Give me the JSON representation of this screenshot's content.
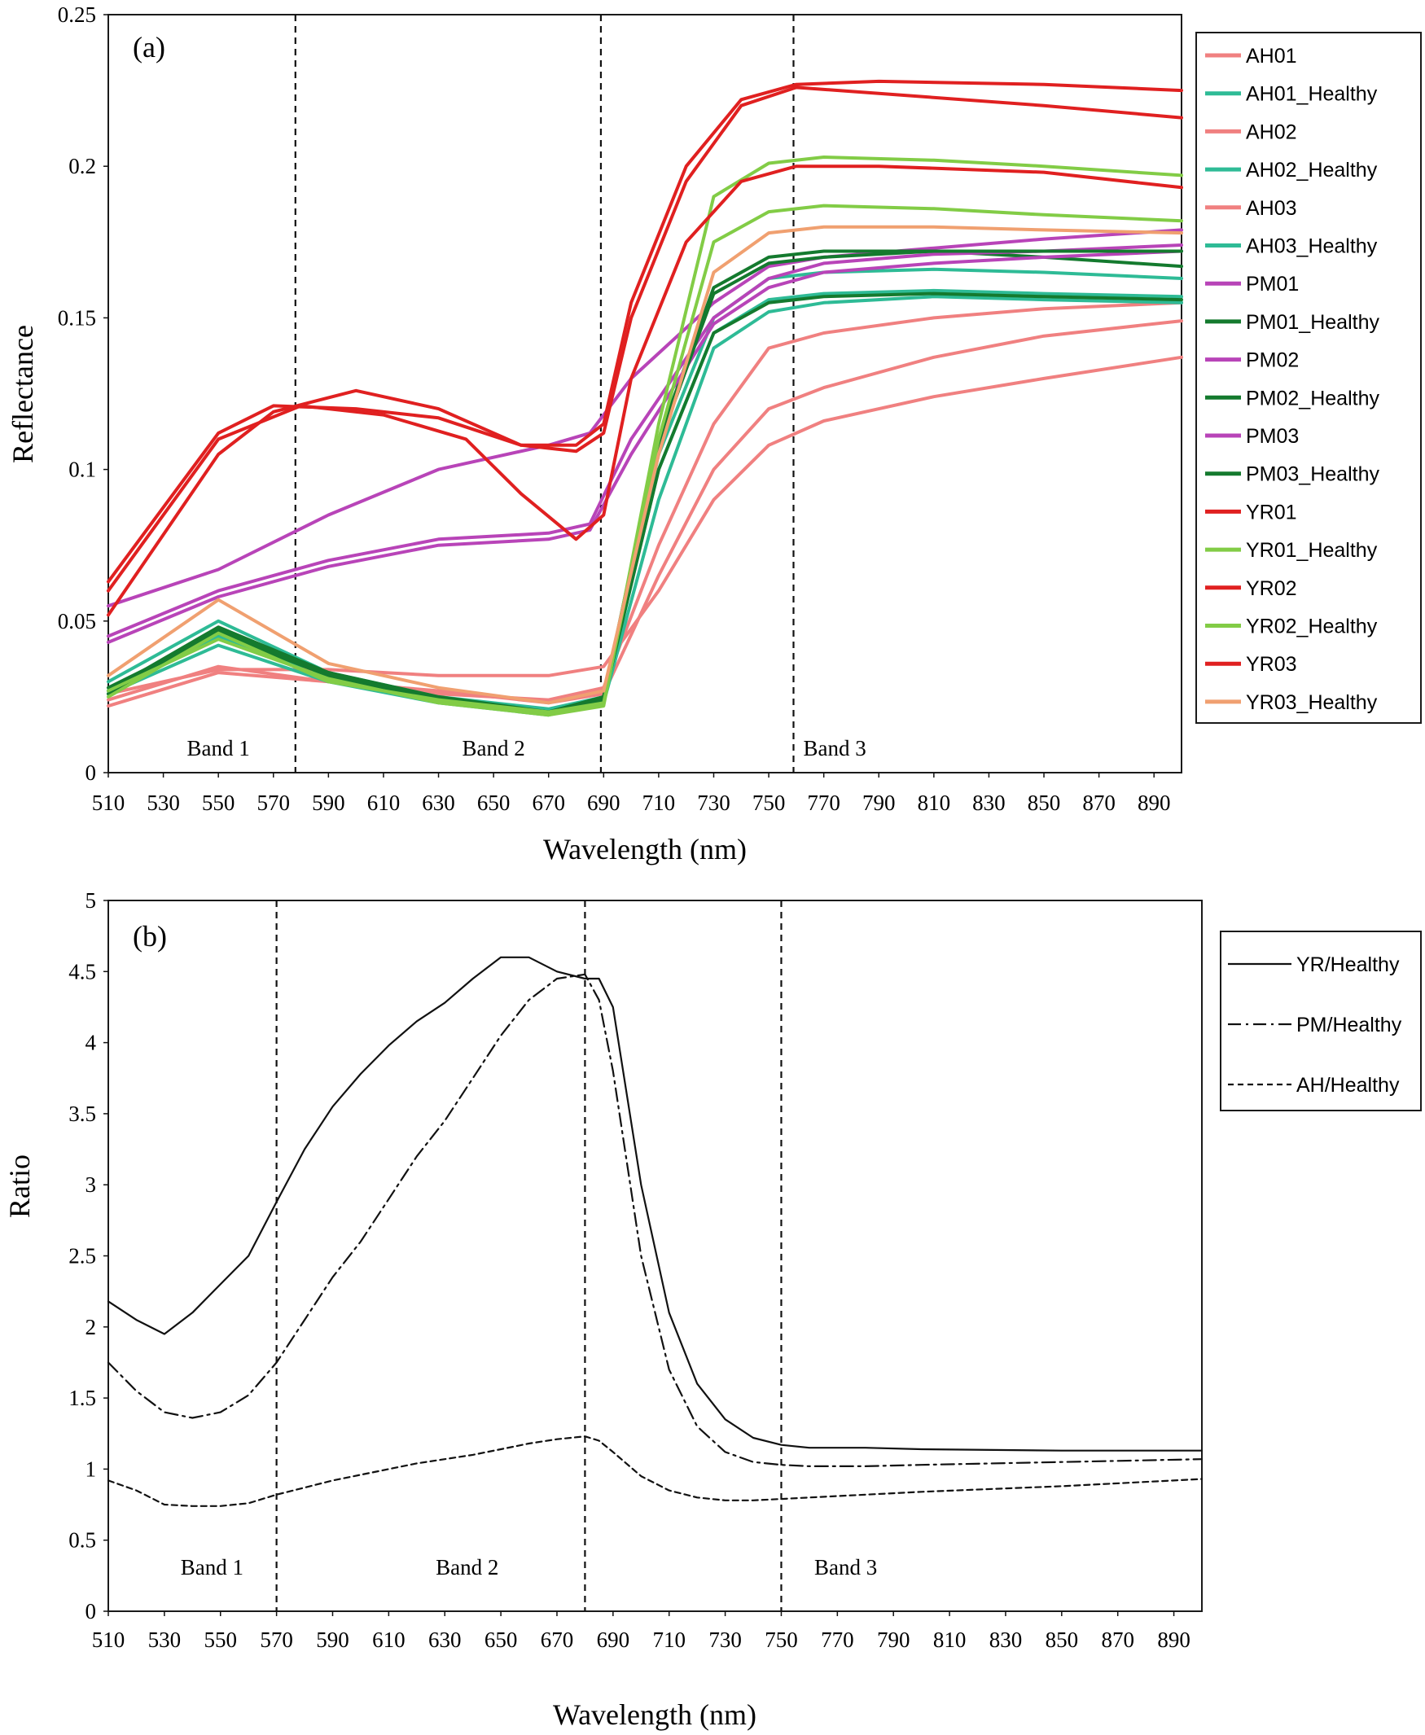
{
  "chart_data": [
    {
      "type": "line",
      "panel_label": "(a)",
      "xlabel": "Wavelength (nm)",
      "ylabel": "Reflectance",
      "xlim": [
        510,
        900
      ],
      "ylim": [
        0,
        0.25
      ],
      "x_ticks": [
        "510",
        "530",
        "550",
        "570",
        "590",
        "610",
        "630",
        "650",
        "670",
        "690",
        "710",
        "730",
        "750",
        "770",
        "790",
        "810",
        "830",
        "850",
        "870",
        "890"
      ],
      "y_ticks": [
        "0",
        "0.05",
        "0.1",
        "0.15",
        "0.2",
        "0.25"
      ],
      "grid": false,
      "legend_position": "right",
      "band_lines": [
        578,
        689,
        759
      ],
      "bands": [
        {
          "label": "Band 1",
          "x": 550
        },
        {
          "label": "Band 2",
          "x": 650
        },
        {
          "label": "Band 3",
          "x": 774
        }
      ],
      "series": [
        {
          "name": "AH01",
          "color": "#f08080",
          "x": [
            510,
            550,
            590,
            630,
            670,
            690,
            710,
            730,
            750,
            770,
            810,
            850,
            900
          ],
          "y": [
            0.022,
            0.033,
            0.03,
            0.027,
            0.023,
            0.026,
            0.065,
            0.1,
            0.12,
            0.127,
            0.137,
            0.144,
            0.149
          ]
        },
        {
          "name": "AH01_Healthy",
          "color": "#2ebb96",
          "x": [
            510,
            550,
            590,
            630,
            670,
            690,
            710,
            730,
            750,
            770,
            810,
            850,
            900
          ],
          "y": [
            0.027,
            0.045,
            0.031,
            0.024,
            0.02,
            0.024,
            0.1,
            0.145,
            0.156,
            0.158,
            0.159,
            0.158,
            0.157
          ]
        },
        {
          "name": "AH02",
          "color": "#f08080",
          "x": [
            510,
            550,
            590,
            630,
            670,
            690,
            710,
            730,
            750,
            770,
            810,
            850,
            900
          ],
          "y": [
            0.024,
            0.035,
            0.03,
            0.026,
            0.024,
            0.028,
            0.075,
            0.115,
            0.14,
            0.145,
            0.15,
            0.153,
            0.155
          ]
        },
        {
          "name": "AH02_Healthy",
          "color": "#2ebb96",
          "x": [
            510,
            550,
            590,
            630,
            670,
            690,
            710,
            730,
            750,
            770,
            810,
            850,
            900
          ],
          "y": [
            0.03,
            0.05,
            0.033,
            0.025,
            0.021,
            0.025,
            0.105,
            0.15,
            0.163,
            0.165,
            0.166,
            0.165,
            0.163
          ]
        },
        {
          "name": "AH03",
          "color": "#f08080",
          "x": [
            510,
            550,
            590,
            630,
            670,
            690,
            710,
            730,
            750,
            770,
            810,
            850,
            900
          ],
          "y": [
            0.026,
            0.034,
            0.034,
            0.032,
            0.032,
            0.035,
            0.06,
            0.09,
            0.108,
            0.116,
            0.124,
            0.13,
            0.137
          ]
        },
        {
          "name": "AH03_Healthy",
          "color": "#2ebb96",
          "x": [
            510,
            550,
            590,
            630,
            670,
            690,
            710,
            730,
            750,
            770,
            810,
            850,
            900
          ],
          "y": [
            0.026,
            0.042,
            0.03,
            0.023,
            0.019,
            0.023,
            0.09,
            0.14,
            0.152,
            0.155,
            0.157,
            0.156,
            0.155
          ]
        },
        {
          "name": "PM01",
          "color": "#b844b8",
          "x": [
            510,
            550,
            590,
            630,
            670,
            685,
            700,
            730,
            750,
            770,
            810,
            850,
            900
          ],
          "y": [
            0.055,
            0.067,
            0.085,
            0.1,
            0.108,
            0.112,
            0.13,
            0.155,
            0.167,
            0.17,
            0.173,
            0.176,
            0.179
          ]
        },
        {
          "name": "PM01_Healthy",
          "color": "#147a2e",
          "x": [
            510,
            550,
            590,
            630,
            670,
            690,
            710,
            730,
            750,
            770,
            810,
            850,
            900
          ],
          "y": [
            0.027,
            0.048,
            0.033,
            0.024,
            0.02,
            0.025,
            0.11,
            0.16,
            0.17,
            0.172,
            0.172,
            0.17,
            0.167
          ]
        },
        {
          "name": "PM02",
          "color": "#b844b8",
          "x": [
            510,
            550,
            590,
            630,
            670,
            685,
            700,
            730,
            750,
            770,
            810,
            850,
            900
          ],
          "y": [
            0.045,
            0.06,
            0.07,
            0.077,
            0.079,
            0.082,
            0.11,
            0.15,
            0.163,
            0.168,
            0.171,
            0.172,
            0.174
          ]
        },
        {
          "name": "PM02_Healthy",
          "color": "#147a2e",
          "x": [
            510,
            550,
            590,
            630,
            670,
            690,
            710,
            730,
            750,
            770,
            810,
            850,
            900
          ],
          "y": [
            0.028,
            0.046,
            0.032,
            0.024,
            0.02,
            0.024,
            0.1,
            0.145,
            0.155,
            0.157,
            0.158,
            0.157,
            0.156
          ]
        },
        {
          "name": "PM03",
          "color": "#b844b8",
          "x": [
            510,
            550,
            590,
            630,
            670,
            685,
            700,
            730,
            750,
            770,
            810,
            850,
            900
          ],
          "y": [
            0.043,
            0.058,
            0.068,
            0.075,
            0.077,
            0.08,
            0.105,
            0.148,
            0.16,
            0.165,
            0.168,
            0.17,
            0.172
          ]
        },
        {
          "name": "PM03_Healthy",
          "color": "#147a2e",
          "x": [
            510,
            550,
            590,
            630,
            670,
            690,
            710,
            730,
            750,
            770,
            810,
            850,
            900
          ],
          "y": [
            0.026,
            0.047,
            0.033,
            0.025,
            0.02,
            0.025,
            0.108,
            0.158,
            0.168,
            0.17,
            0.172,
            0.172,
            0.172
          ]
        },
        {
          "name": "YR01",
          "color": "#e02020",
          "x": [
            510,
            550,
            570,
            600,
            630,
            660,
            680,
            690,
            700,
            720,
            740,
            760,
            790,
            850,
            900
          ],
          "y": [
            0.063,
            0.112,
            0.121,
            0.12,
            0.117,
            0.108,
            0.108,
            0.115,
            0.155,
            0.2,
            0.222,
            0.227,
            0.228,
            0.227,
            0.225
          ]
        },
        {
          "name": "YR01_Healthy",
          "color": "#82cc46",
          "x": [
            510,
            550,
            590,
            630,
            670,
            690,
            710,
            730,
            750,
            770,
            810,
            850,
            900
          ],
          "y": [
            0.025,
            0.046,
            0.03,
            0.024,
            0.02,
            0.023,
            0.11,
            0.175,
            0.185,
            0.187,
            0.186,
            0.184,
            0.182
          ]
        },
        {
          "name": "YR02",
          "color": "#e02020",
          "x": [
            510,
            550,
            570,
            600,
            630,
            660,
            680,
            690,
            700,
            720,
            740,
            760,
            790,
            850,
            900
          ],
          "y": [
            0.052,
            0.105,
            0.119,
            0.126,
            0.12,
            0.108,
            0.106,
            0.112,
            0.15,
            0.195,
            0.22,
            0.226,
            0.224,
            0.22,
            0.216
          ]
        },
        {
          "name": "YR02_Healthy",
          "color": "#82cc46",
          "x": [
            510,
            550,
            590,
            630,
            670,
            690,
            710,
            730,
            750,
            770,
            810,
            850,
            900
          ],
          "y": [
            0.027,
            0.044,
            0.031,
            0.023,
            0.019,
            0.022,
            0.115,
            0.19,
            0.201,
            0.203,
            0.202,
            0.2,
            0.197
          ]
        },
        {
          "name": "YR03",
          "color": "#e02020",
          "x": [
            510,
            550,
            580,
            610,
            640,
            660,
            680,
            690,
            700,
            720,
            740,
            760,
            790,
            850,
            900
          ],
          "y": [
            0.06,
            0.11,
            0.121,
            0.118,
            0.11,
            0.092,
            0.077,
            0.085,
            0.13,
            0.175,
            0.195,
            0.2,
            0.2,
            0.198,
            0.193
          ]
        },
        {
          "name": "YR03_Healthy",
          "color": "#f0a070",
          "x": [
            510,
            550,
            590,
            630,
            670,
            690,
            710,
            730,
            750,
            770,
            810,
            850,
            900
          ],
          "y": [
            0.032,
            0.057,
            0.036,
            0.028,
            0.023,
            0.027,
            0.105,
            0.165,
            0.178,
            0.18,
            0.18,
            0.179,
            0.178
          ]
        }
      ]
    },
    {
      "type": "line",
      "panel_label": "(b)",
      "xlabel": "Wavelength (nm)",
      "ylabel": "Ratio",
      "xlim": [
        510,
        900
      ],
      "ylim": [
        0,
        5
      ],
      "x_ticks": [
        "510",
        "530",
        "550",
        "570",
        "590",
        "610",
        "630",
        "650",
        "670",
        "690",
        "710",
        "730",
        "750",
        "770",
        "790",
        "810",
        "830",
        "850",
        "870",
        "890"
      ],
      "y_ticks": [
        "0",
        "0.5",
        "1",
        "1.5",
        "2",
        "2.5",
        "3",
        "3.5",
        "4",
        "4.5",
        "5"
      ],
      "grid": false,
      "legend_position": "right",
      "band_lines": [
        570,
        680,
        750
      ],
      "bands": [
        {
          "label": "Band 1",
          "x": 547
        },
        {
          "label": "Band 2",
          "x": 638
        },
        {
          "label": "Band 3",
          "x": 773
        }
      ],
      "series": [
        {
          "name": "YR/Healthy",
          "style": "solid",
          "x": [
            510,
            520,
            530,
            540,
            550,
            560,
            570,
            580,
            590,
            600,
            610,
            620,
            630,
            640,
            650,
            660,
            670,
            680,
            685,
            690,
            700,
            710,
            720,
            730,
            740,
            750,
            760,
            780,
            800,
            850,
            900
          ],
          "y": [
            2.18,
            2.05,
            1.95,
            2.1,
            2.3,
            2.5,
            2.88,
            3.25,
            3.55,
            3.78,
            3.98,
            4.15,
            4.28,
            4.45,
            4.6,
            4.6,
            4.5,
            4.45,
            4.45,
            4.25,
            3.0,
            2.1,
            1.6,
            1.35,
            1.22,
            1.17,
            1.15,
            1.15,
            1.14,
            1.13,
            1.13
          ]
        },
        {
          "name": "PM/Healthy",
          "style": "dashdot",
          "x": [
            510,
            520,
            530,
            540,
            550,
            560,
            570,
            580,
            590,
            600,
            610,
            620,
            630,
            640,
            650,
            660,
            670,
            680,
            685,
            690,
            700,
            710,
            720,
            730,
            740,
            750,
            760,
            780,
            800,
            850,
            900
          ],
          "y": [
            1.75,
            1.55,
            1.4,
            1.36,
            1.4,
            1.52,
            1.75,
            2.05,
            2.35,
            2.6,
            2.9,
            3.2,
            3.45,
            3.75,
            4.05,
            4.3,
            4.45,
            4.48,
            4.3,
            3.8,
            2.5,
            1.7,
            1.3,
            1.12,
            1.05,
            1.03,
            1.02,
            1.02,
            1.03,
            1.05,
            1.07
          ]
        },
        {
          "name": "AH/Healthy",
          "style": "dashed",
          "x": [
            510,
            520,
            530,
            540,
            550,
            560,
            570,
            580,
            590,
            600,
            610,
            620,
            630,
            640,
            650,
            660,
            670,
            680,
            685,
            690,
            700,
            710,
            720,
            730,
            740,
            750,
            760,
            780,
            800,
            850,
            900
          ],
          "y": [
            0.92,
            0.85,
            0.75,
            0.74,
            0.74,
            0.76,
            0.82,
            0.87,
            0.92,
            0.96,
            1.0,
            1.04,
            1.07,
            1.1,
            1.14,
            1.18,
            1.21,
            1.23,
            1.2,
            1.12,
            0.95,
            0.85,
            0.8,
            0.78,
            0.78,
            0.79,
            0.8,
            0.82,
            0.84,
            0.88,
            0.93
          ]
        }
      ]
    }
  ]
}
